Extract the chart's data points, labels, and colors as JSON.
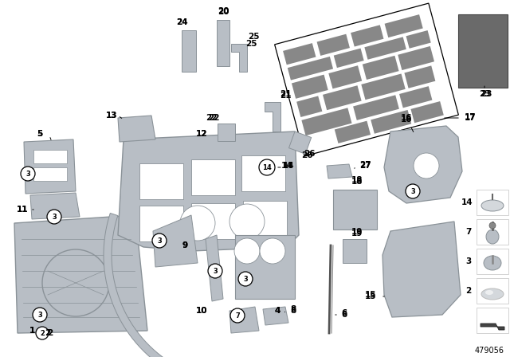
{
  "bg_color": "#ffffff",
  "part_color": "#b8bec5",
  "part_shadow": "#8a9298",
  "part_light": "#d4d8dc",
  "diagram_number": "479056",
  "label_fs": 7.5,
  "callout_r": 0.013
}
